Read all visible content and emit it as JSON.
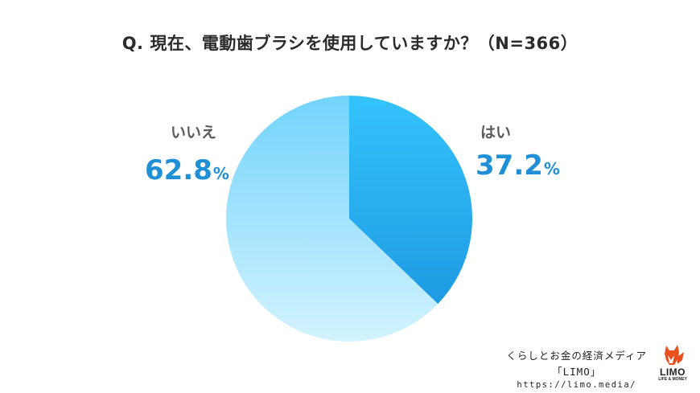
{
  "title": "Q. 現在、電動歯ブラシを使用していますか？（N=366）",
  "chart_data": {
    "type": "pie",
    "title": "Q. 現在、電動歯ブラシを使用していますか？（N=366）",
    "slices": [
      {
        "label": "はい",
        "value": 37.2,
        "value_text": "37.2",
        "unit": "%",
        "color_top": "#35c3fb",
        "color_bottom": "#1e9ae3"
      },
      {
        "label": "いいえ",
        "value": 62.8,
        "value_text": "62.8",
        "unit": "%",
        "color_top": "#73d3fb",
        "color_bottom": "#d3f3ff"
      }
    ],
    "n": 366
  },
  "credit": {
    "line1": "くらしとお金の経済メディア",
    "line2": "「LIMO」",
    "line3": "https://limo.media/"
  },
  "logo": {
    "name": "LIMO",
    "tagline": "LIFE & MONEY",
    "icon": "fox-logo-icon"
  }
}
